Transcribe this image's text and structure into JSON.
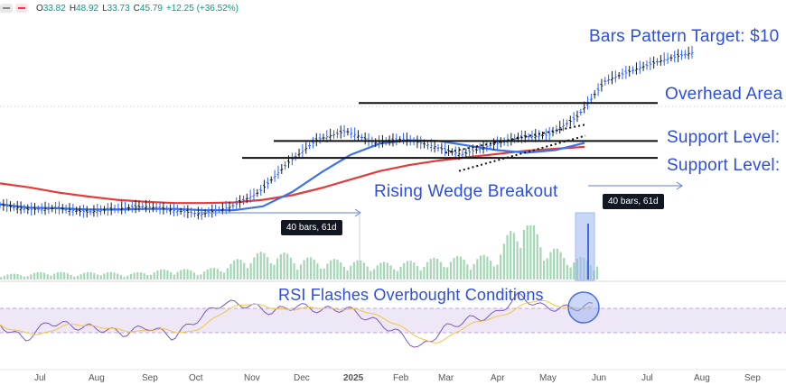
{
  "ohlc": {
    "open_label": "O",
    "open": "33.82",
    "high_label": "H",
    "high": "48.92",
    "low_label": "L",
    "low": "33.73",
    "close_label": "C",
    "close": "45.79",
    "change": "+12.25 (+36.52%)"
  },
  "annotations": {
    "target": "Bars Pattern Target: $10",
    "overhead": "Overhead Area",
    "support_1": "Support Level:",
    "support_2": "Support Level:",
    "breakout": "Rising Wedge Breakout",
    "rsi": "RSI Flashes Overbought Conditions"
  },
  "bar_tags": {
    "first": "40 bars, 61d",
    "second": "40 bars, 61d"
  },
  "colors": {
    "annotation": "#2d4ee0",
    "up": "#2962ff",
    "down": "#131722",
    "ma_fast": "#3d72e8",
    "ma_slow": "#e53a3a",
    "volume": "#a5d6b6",
    "rsi": "#7e57c2",
    "rsi_signal": "#f5c542",
    "rsi_band": "#ede7f6"
  },
  "chart_data": {
    "type": "line",
    "x_labels": [
      "Jul",
      "Aug",
      "Sep",
      "Oct",
      "Nov",
      "Dec",
      "2025",
      "Feb",
      "Mar",
      "Apr",
      "May",
      "Jun",
      "Jul",
      "Aug",
      "Sep"
    ],
    "series": [
      {
        "values": [
          22.5,
          21.8,
          22.0,
          21.4,
          21.9,
          22.3,
          21.7,
          21.1,
          22.2,
          24.5,
          29.0,
          32.5,
          33.8,
          32.0,
          32.6,
          31.5,
          30.2,
          31.6,
          32.8,
          33.2,
          35.9,
          41.5,
          43.2,
          44.7,
          45.8
        ]
      },
      {
        "values": [
          22.6,
          22.1,
          22.0,
          21.8,
          21.8,
          21.9,
          21.9,
          21.7,
          21.7,
          22.3,
          24.5,
          27.5,
          30.2,
          31.9,
          32.4,
          32.3,
          31.6,
          30.9,
          30.5,
          30.9,
          32.0
        ]
      },
      {
        "values": [
          25.8,
          25.2,
          24.4,
          23.8,
          23.3,
          23.0,
          22.8,
          22.8,
          22.9,
          23.3,
          24.0,
          25.1,
          26.4,
          27.7,
          28.6,
          29.3,
          29.8,
          30.3,
          30.8,
          31.1,
          31.4
        ]
      }
    ],
    "horizontal_levels": [
      {
        "name": "Overhead Area",
        "value": 38.1
      },
      {
        "name": "Support Level:",
        "value": 32.3
      },
      {
        "name": "Support Level:",
        "value": 29.7
      }
    ],
    "volume": [
      2,
      2,
      3,
      2,
      3,
      2,
      3,
      4,
      3,
      5,
      9,
      10,
      8,
      7,
      7,
      6,
      6,
      7,
      8,
      8,
      9,
      25,
      12,
      8,
      7
    ],
    "rsi": [
      52,
      35,
      55,
      50,
      48,
      42,
      50,
      38,
      58,
      76,
      74,
      66,
      73,
      68,
      70,
      58,
      45,
      25,
      48,
      58,
      62,
      84,
      71,
      70,
      73
    ]
  }
}
